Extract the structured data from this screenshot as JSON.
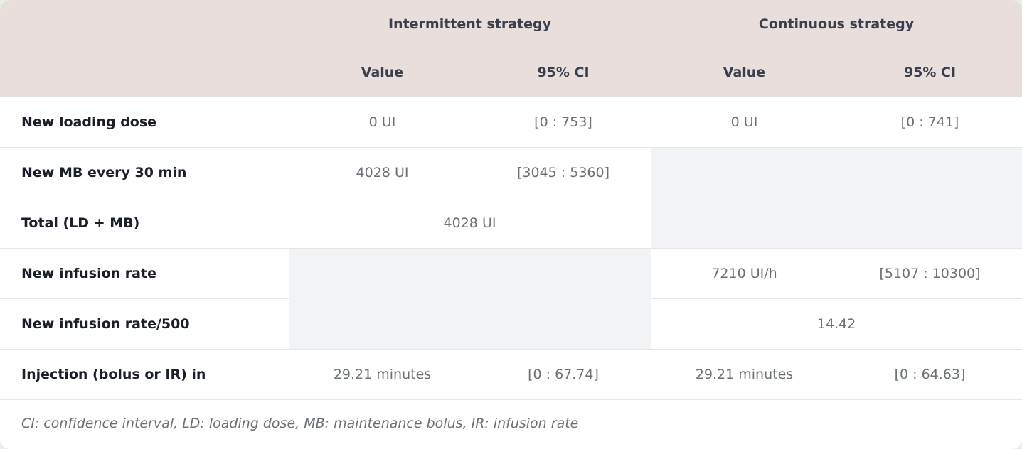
{
  "header": {
    "group_intermittent": "Intermittent strategy",
    "group_continuous": "Continuous strategy",
    "col_value": "Value",
    "col_ci": "95% CI"
  },
  "rows": {
    "loading_dose": {
      "label": "New loading dose",
      "int_value": "0 UI",
      "int_ci": "[0 : 753]",
      "cont_value": "0 UI",
      "cont_ci": "[0 : 741]"
    },
    "mb": {
      "label": "New MB every 30 min",
      "int_value": "4028 UI",
      "int_ci": "[3045 : 5360]"
    },
    "total": {
      "label": "Total (LD + MB)",
      "int_value": "4028 UI"
    },
    "infusion_rate": {
      "label": "New infusion rate",
      "cont_value": "7210 UI/h",
      "cont_ci": "[5107 : 10300]"
    },
    "infusion_rate_500": {
      "label": "New infusion rate/500",
      "cont_value": "14.42"
    },
    "injection": {
      "label": "Injection (bolus or IR) in",
      "int_value": "29.21 minutes",
      "int_ci": "[0 : 67.74]",
      "cont_value": "29.21 minutes",
      "cont_ci": "[0 : 64.63]"
    }
  },
  "footnote": "CI: confidence interval, LD: loading dose, MB: maintenance bolus, IR: infusion rate",
  "colors": {
    "header_bg": "#e8dedb",
    "empty_cell_bg": "#f2f3f5",
    "label_text": "#1b1f2a",
    "value_text": "#6b7078"
  }
}
